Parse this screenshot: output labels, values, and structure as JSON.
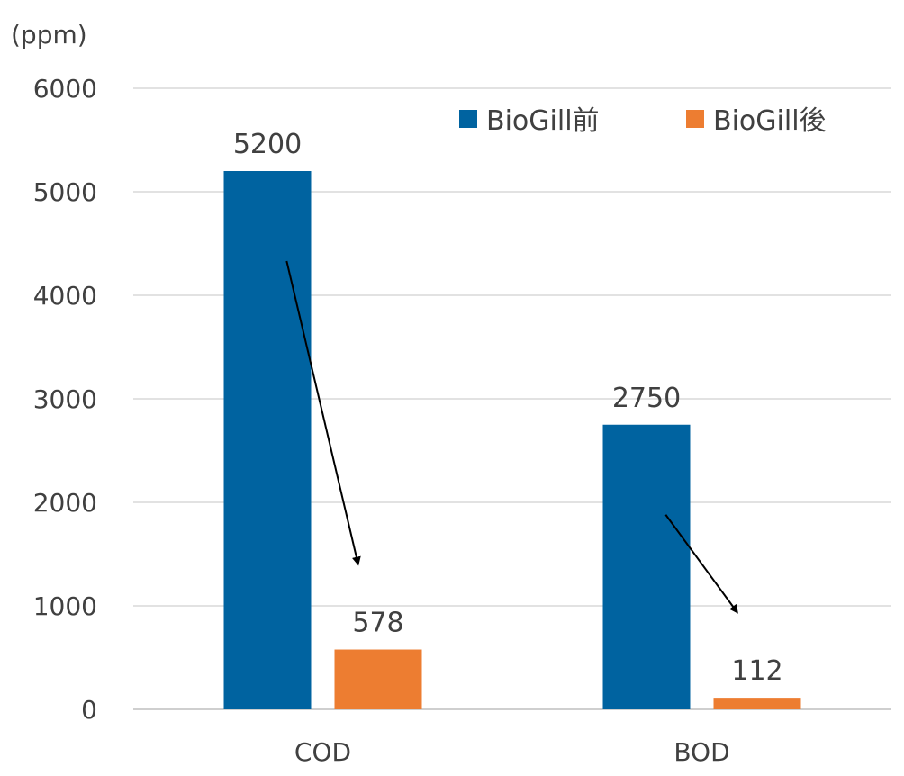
{
  "chart_data": {
    "type": "bar",
    "unit": "(ppm)",
    "categories": [
      "COD",
      "BOD"
    ],
    "series": [
      {
        "name": "BioGill前",
        "values": [
          5200,
          2750
        ],
        "color": "#0063a0"
      },
      {
        "name": "BioGill後",
        "values": [
          578,
          112
        ],
        "color": "#ed7d31"
      }
    ],
    "data_labels": [
      [
        "5200",
        "2750"
      ],
      [
        "578",
        "112"
      ]
    ],
    "ylim": [
      0,
      6000
    ],
    "yticks": [
      0,
      1000,
      2000,
      3000,
      4000,
      5000,
      6000
    ],
    "grid": true,
    "legend_position": "top-right",
    "annotations": "arrows from each blue bar down to the matching orange bar"
  }
}
